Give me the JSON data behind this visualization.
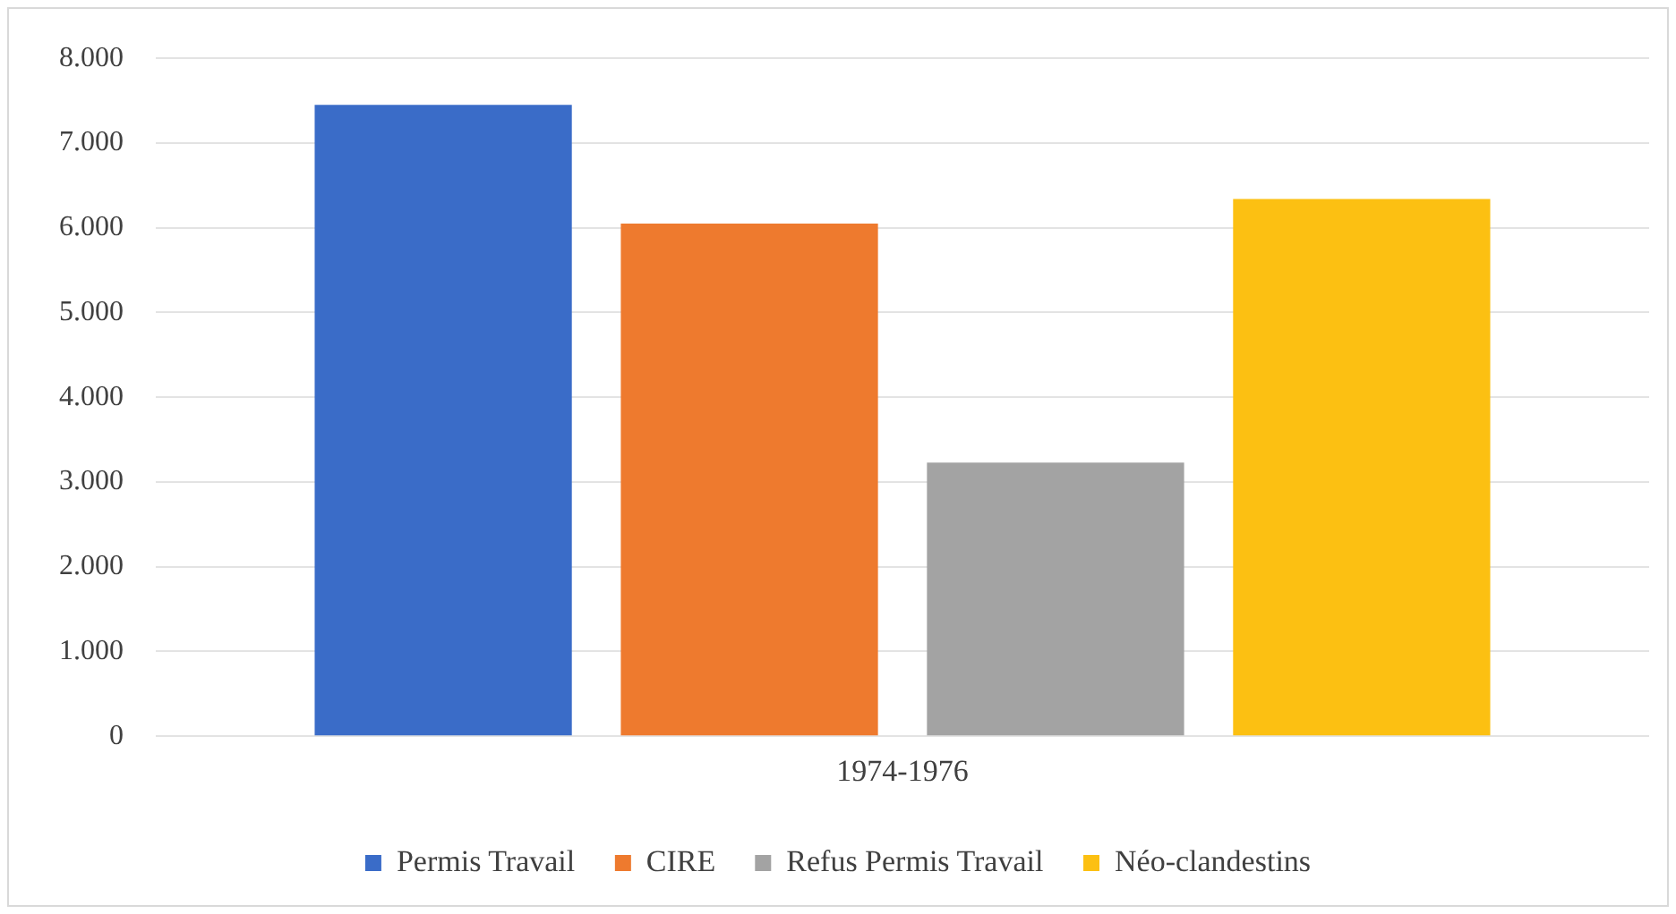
{
  "chart_data": {
    "type": "bar",
    "categories": [
      "1974-1976"
    ],
    "series": [
      {
        "name": "Permis Travail",
        "color": "#3a6cc8",
        "values": [
          7450
        ]
      },
      {
        "name": "CIRE",
        "color": "#ee7a2e",
        "values": [
          6050
        ]
      },
      {
        "name": "Refus Permis Travail",
        "color": "#a3a3a3",
        "values": [
          3230
        ]
      },
      {
        "name": "Néo-clandestins",
        "color": "#fcc012",
        "values": [
          6340
        ]
      }
    ],
    "ylim": [
      0,
      8000
    ],
    "yticks": [
      0,
      {
        "value": 1000,
        "label": "1.000"
      },
      {
        "value": 2000,
        "label": "2.000"
      },
      {
        "value": 3000,
        "label": "3.000"
      },
      {
        "value": 4000,
        "label": "4.000"
      },
      {
        "value": 5000,
        "label": "5.000"
      },
      {
        "value": 6000,
        "label": "6.000"
      },
      {
        "value": 7000,
        "label": "7.000"
      },
      {
        "value": 8000,
        "label": "8.000"
      }
    ],
    "grid": "y",
    "legend": "bottom"
  }
}
